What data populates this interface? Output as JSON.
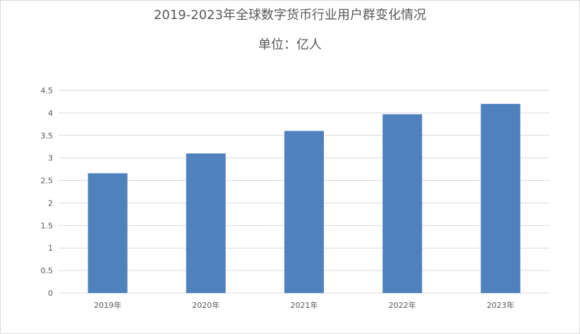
{
  "chart_data": {
    "type": "bar",
    "title": "2019-2023年全球数字货币行业用户群变化情况",
    "subtitle": "单位：亿人",
    "categories": [
      "2019年",
      "2020年",
      "2021年",
      "2022年",
      "2023年"
    ],
    "values": [
      2.66,
      3.1,
      3.6,
      3.97,
      4.2
    ],
    "ylim": [
      0,
      4.5
    ],
    "yticks": [
      "0",
      "0.5",
      "1",
      "1.5",
      "2",
      "2.5",
      "3",
      "3.5",
      "4",
      "4.5"
    ],
    "xlabel": "",
    "ylabel": "",
    "grid": true,
    "bar_color": "#4F81BD",
    "grid_color": "#d9d9d9"
  }
}
